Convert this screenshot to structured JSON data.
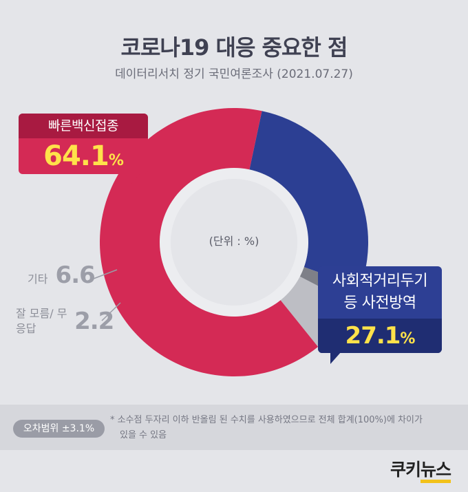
{
  "header": {
    "title": "코로나19 대응 중요한 점",
    "subtitle": "데이터리서치 정기 국민여론조사 (2021.07.27)"
  },
  "chart_data": {
    "type": "pie",
    "unit_label": "(단위 : %)",
    "categories": [
      "사회적거리두기 등 사전방역",
      "잘 모름/무응답",
      "기타",
      "빠른백신접종"
    ],
    "values": [
      27.1,
      2.2,
      6.6,
      64.1
    ],
    "colors": [
      "#2c3f93",
      "#7e8088",
      "#bdbec4",
      "#d42a55"
    ]
  },
  "labels": {
    "vaccine_name": "빠른백신접종",
    "vaccine_value": "64.1",
    "distancing_line1": "사회적거리두기",
    "distancing_line2": "등 사전방역",
    "distancing_value": "27.1",
    "pct": "%",
    "other_name": "기타",
    "other_value": "6.6",
    "dk_name": "잘 모름/ 무응답",
    "dk_value": "2.2"
  },
  "footer": {
    "margin": "오차범위 ±3.1%",
    "note_line1": "* 소수점 두자리 이하 반올림 된 수치를 사용하였으므로 전체 합계(100%)에 차이가",
    "note_line2": "있을 수 있음",
    "logo_a": "쿠키",
    "logo_b": "뉴스"
  }
}
